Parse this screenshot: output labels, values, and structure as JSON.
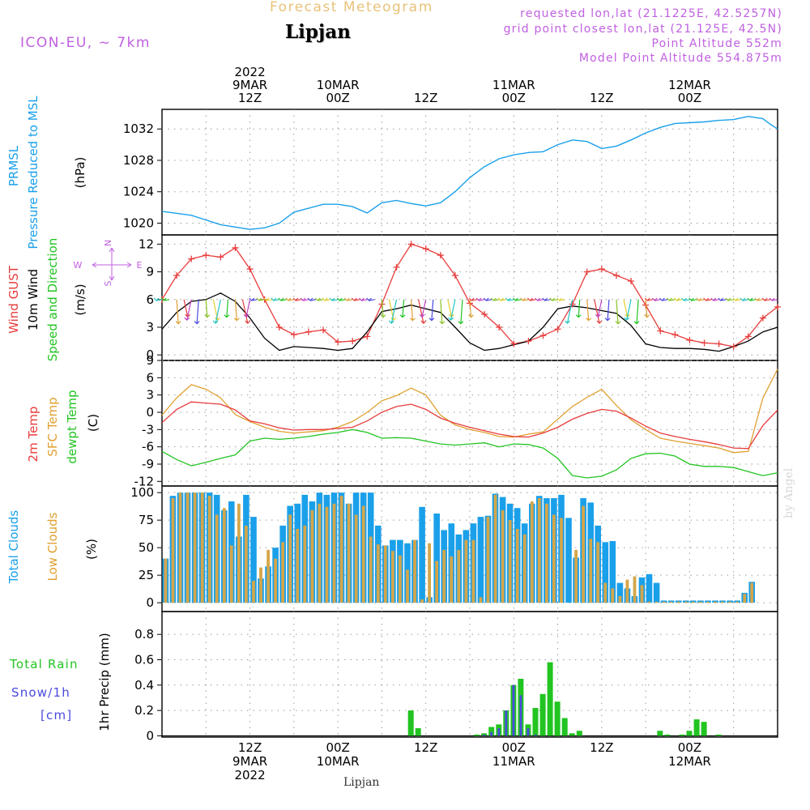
{
  "header": {
    "title": "Forecast Meteogram",
    "location": "Lipjan",
    "model": "ICON-EU, ~ 7km",
    "requested": "requested lon,lat (21.1225E, 42.5257N)",
    "grid_point": "grid point closest lon,lat (21.125E, 42.5N)",
    "point_altitude": "Point Altitude 552m",
    "model_altitude": "Model Point Altitude 554.875m"
  },
  "footer": {
    "location": "Lipjan",
    "watermark": "by Angel"
  },
  "time_axis": {
    "top_labels": [
      {
        "hour": 12,
        "lines": [
          "2022",
          "9MAR",
          "12Z"
        ]
      },
      {
        "hour": 24,
        "lines": [
          "10MAR",
          "00Z"
        ]
      },
      {
        "hour": 36,
        "lines": [
          "12Z"
        ]
      },
      {
        "hour": 48,
        "lines": [
          "11MAR",
          "00Z"
        ]
      },
      {
        "hour": 60,
        "lines": [
          "12Z"
        ]
      },
      {
        "hour": 72,
        "lines": [
          "12MAR",
          "00Z"
        ]
      }
    ],
    "bottom_labels": [
      {
        "hour": 12,
        "lines": [
          "12Z",
          "9MAR",
          "2022"
        ]
      },
      {
        "hour": 24,
        "lines": [
          "00Z",
          "10MAR"
        ]
      },
      {
        "hour": 36,
        "lines": [
          "12Z"
        ]
      },
      {
        "hour": 48,
        "lines": [
          "00Z",
          "11MAR"
        ]
      },
      {
        "hour": 60,
        "lines": [
          "12Z"
        ]
      },
      {
        "hour": 72,
        "lines": [
          "00Z",
          "12MAR"
        ]
      }
    ]
  },
  "panel_labels": {
    "pressure": {
      "lines": [
        {
          "text": "PRMSL",
          "color": "#1aa0ea"
        },
        {
          "text": "Pressure Reduced to MSL",
          "color": "#1aa0ea"
        },
        {
          "text": "(hPa)",
          "color": "#000000"
        }
      ]
    },
    "wind": {
      "lines": [
        {
          "text": "Wind GUST",
          "color": "#e83c3c"
        },
        {
          "text": "10m Wind",
          "color": "#000000"
        },
        {
          "text": "Speed and Direction",
          "color": "#22c422"
        },
        {
          "text": "(m/s)",
          "color": "#000000"
        }
      ]
    },
    "temp": {
      "lines": [
        {
          "text": "2m Temp",
          "color": "#e83c3c"
        },
        {
          "text": "SFC Temp",
          "color": "#e0a030"
        },
        {
          "text": "dewpt Temp",
          "color": "#22c422"
        },
        {
          "text": "(C)",
          "color": "#000000"
        }
      ]
    },
    "clouds": {
      "lines": [
        {
          "text": "Total Clouds",
          "color": "#1aa0ea"
        },
        {
          "text": "Low Clouds",
          "color": "#e0a030"
        },
        {
          "text": "(%)",
          "color": "#000000"
        }
      ]
    },
    "precip": {
      "axis_label": "1hr Precip (mm)",
      "legend": [
        {
          "text": "Total  Rain",
          "color": "#22c422"
        },
        {
          "text": "Snow/1h",
          "color": "#4a4ae0"
        },
        {
          "text": "[cm]",
          "color": "#4a4ae0"
        }
      ]
    },
    "compass": {
      "n": "N",
      "s": "S",
      "w": "W",
      "e": "E"
    }
  },
  "colors": {
    "pressure": "#1aa0ea",
    "gust": "#e83c3c",
    "wind": "#000000",
    "temp2m": "#e83c3c",
    "sfc": "#e0a030",
    "dewpt": "#22c422",
    "total_clouds": "#1aa0ea",
    "low_clouds": "#d4a64a",
    "rain": "#22c422",
    "snow": "#4a4ae0"
  },
  "chart_data": [
    {
      "type": "line",
      "name": "pressure",
      "ylim": [
        1018.5,
        1034.5
      ],
      "yticks": [
        1020,
        1024,
        1028,
        1032
      ],
      "x": [
        0,
        4,
        8,
        12,
        14,
        16,
        18,
        20,
        22,
        24,
        26,
        28,
        30,
        32,
        34,
        36,
        38,
        40,
        42,
        44,
        46,
        48,
        50,
        52,
        54,
        56,
        58,
        60,
        62,
        64,
        66,
        68,
        70,
        72,
        74,
        76,
        78,
        80,
        82,
        83,
        84
      ],
      "values": [
        1021.5,
        1021,
        1019.8,
        1019.2,
        1019.4,
        1020,
        1021.4,
        1021.9,
        1022.4,
        1022.4,
        1022.1,
        1021.3,
        1022.6,
        1022.9,
        1022.5,
        1022.2,
        1022.6,
        1024,
        1025.8,
        1027.2,
        1028.2,
        1028.7,
        1029,
        1029.1,
        1030,
        1030.6,
        1030.4,
        1029.5,
        1029.8,
        1030.6,
        1031.5,
        1032.2,
        1032.7,
        1032.8,
        1032.9,
        1033.1,
        1033.2,
        1033.6,
        1033.3,
        1032.6,
        1032
      ]
    },
    {
      "type": "line",
      "name": "wind",
      "ylim": [
        -0.6,
        13.0
      ],
      "yticks": [
        0,
        3,
        6,
        9,
        12
      ],
      "x": [
        0,
        2,
        4,
        6,
        8,
        10,
        12,
        14,
        16,
        18,
        20,
        22,
        24,
        26,
        28,
        30,
        32,
        34,
        36,
        38,
        40,
        42,
        44,
        46,
        48,
        50,
        52,
        54,
        56,
        58,
        60,
        62,
        64,
        66,
        68,
        70,
        72,
        74,
        76,
        78,
        80,
        82,
        84
      ],
      "gust": [
        6,
        8.6,
        10.4,
        10.8,
        10.6,
        11.6,
        9.3,
        6,
        3,
        2.2,
        2.5,
        2.7,
        1.4,
        1.5,
        2,
        5.5,
        9.5,
        12,
        11.5,
        10.8,
        8.6,
        5.6,
        4.4,
        3,
        1.2,
        1.5,
        2.1,
        2.8,
        5.5,
        9,
        9.3,
        8.6,
        8,
        5.4,
        2.6,
        2.2,
        1.6,
        1.3,
        1.2,
        0.9,
        2,
        4,
        5.2
      ],
      "speed": [
        2.8,
        4.6,
        5.8,
        6,
        6.7,
        5.8,
        4,
        1.8,
        0.5,
        0.9,
        0.8,
        0.7,
        0.5,
        0.7,
        2.5,
        4.7,
        5,
        5.4,
        5,
        4.6,
        3,
        1.3,
        0.5,
        0.7,
        1.1,
        1.5,
        3,
        5,
        5.3,
        5.1,
        4.8,
        4.5,
        3.2,
        1.2,
        0.8,
        0.7,
        0.7,
        0.6,
        0.4,
        0.9,
        1.5,
        2.5,
        3
      ]
    },
    {
      "type": "line",
      "name": "temperature",
      "ylim": [
        -12.8,
        9.0
      ],
      "yticks": [
        -12,
        -9,
        -6,
        -3,
        0,
        3,
        6,
        9
      ],
      "x": [
        0,
        2,
        4,
        6,
        8,
        10,
        12,
        14,
        16,
        18,
        20,
        22,
        24,
        26,
        28,
        30,
        32,
        34,
        36,
        38,
        40,
        42,
        44,
        46,
        48,
        50,
        52,
        54,
        56,
        58,
        60,
        62,
        64,
        66,
        68,
        70,
        72,
        74,
        76,
        78,
        80,
        82,
        84
      ],
      "temp2m": [
        -1.8,
        0.5,
        1.8,
        1.6,
        1.4,
        0.4,
        -1.5,
        -2,
        -2.7,
        -3.1,
        -3,
        -3,
        -2.8,
        -2.6,
        -1.5,
        0,
        1,
        1.4,
        0.5,
        -1,
        -1.9,
        -2.6,
        -3.2,
        -3.8,
        -4.2,
        -4.3,
        -3.6,
        -2.6,
        -1.2,
        -0.2,
        0.5,
        0.2,
        -1,
        -2.4,
        -3.6,
        -4.2,
        -4.7,
        -5.1,
        -5.6,
        -6.2,
        -6.3,
        -2.3,
        0.4
      ],
      "sfc": [
        -0.5,
        2.5,
        4.8,
        4,
        2.5,
        -0.4,
        -1.6,
        -2.6,
        -3.3,
        -3.6,
        -3.4,
        -3.2,
        -2.6,
        -1.6,
        0,
        2,
        2.9,
        4.2,
        3,
        -0.5,
        -2.2,
        -3,
        -3.5,
        -4.2,
        -4.3,
        -3.8,
        -3.4,
        -1.2,
        1,
        2.6,
        4,
        1.2,
        -1.3,
        -3,
        -4.5,
        -5,
        -5.4,
        -5.8,
        -6.2,
        -7,
        -6.8,
        2.5,
        7.5
      ],
      "dewpt": [
        -6.8,
        -8.2,
        -9.3,
        -8.7,
        -8,
        -7.4,
        -5,
        -4.5,
        -4.7,
        -4.5,
        -4.2,
        -3.8,
        -3.5,
        -3,
        -3.5,
        -4.5,
        -4.4,
        -4.5,
        -5,
        -5.5,
        -5.7,
        -5.5,
        -5.3,
        -6,
        -5.5,
        -5.6,
        -6.2,
        -8,
        -11,
        -11.4,
        -11.1,
        -10,
        -8,
        -7.2,
        -7.1,
        -7.6,
        -9,
        -9.4,
        -9.4,
        -9.6,
        -10.3,
        -11,
        -10.5
      ]
    },
    {
      "type": "bar",
      "name": "clouds",
      "ylim": [
        -8,
        106
      ],
      "yticks": [
        0,
        25,
        50,
        75,
        100
      ],
      "start_hour": 0,
      "step_hours": 1,
      "total": [
        40,
        97,
        100,
        100,
        100,
        100,
        100,
        98,
        84,
        92,
        60,
        98,
        78,
        22,
        33,
        50,
        70,
        88,
        90,
        98,
        92,
        100,
        98,
        100,
        100,
        90,
        100,
        100,
        100,
        70,
        52,
        57,
        57,
        54,
        57,
        87,
        5,
        81,
        66,
        72,
        62,
        66,
        72,
        78,
        79,
        99,
        96,
        90,
        86,
        72,
        90,
        97,
        95,
        95,
        98,
        77,
        41,
        95,
        91,
        70,
        55,
        56,
        18,
        13,
        6,
        23,
        26,
        18,
        2,
        2,
        2,
        2,
        2,
        2,
        2,
        2,
        2,
        2,
        2,
        9,
        19
      ],
      "low": [
        40,
        95,
        100,
        100,
        100,
        100,
        97,
        80,
        86,
        52,
        90,
        70,
        20,
        32,
        48,
        40,
        55,
        80,
        67,
        70,
        84,
        90,
        87,
        90,
        97,
        90,
        80,
        88,
        60,
        53,
        52,
        47,
        43,
        30,
        57,
        3,
        54,
        38,
        48,
        42,
        48,
        57,
        57,
        5,
        78,
        98,
        84,
        75,
        67,
        62,
        92,
        95,
        90,
        80,
        77,
        0,
        48,
        88,
        58,
        55,
        18,
        13,
        6,
        21,
        24,
        16,
        1,
        1,
        1,
        1,
        1,
        1,
        1,
        1,
        1,
        1,
        1,
        1,
        1,
        8,
        18
      ]
    },
    {
      "type": "bar",
      "name": "precipitation",
      "ylim": [
        -0.01,
        0.98
      ],
      "yticks": [
        0,
        0.2,
        0.4,
        0.6,
        0.8
      ],
      "rain": [
        {
          "h": 34,
          "v": 0.2
        },
        {
          "h": 35,
          "v": 0.06
        },
        {
          "h": 43,
          "v": 0.01
        },
        {
          "h": 44,
          "v": 0.02
        },
        {
          "h": 45,
          "v": 0.07
        },
        {
          "h": 46,
          "v": 0.09
        },
        {
          "h": 47,
          "v": 0.2
        },
        {
          "h": 48,
          "v": 0.4
        },
        {
          "h": 49,
          "v": 0.45
        },
        {
          "h": 50,
          "v": 0.09
        },
        {
          "h": 51,
          "v": 0.22
        },
        {
          "h": 52,
          "v": 0.33
        },
        {
          "h": 53,
          "v": 0.58
        },
        {
          "h": 54,
          "v": 0.27
        },
        {
          "h": 55,
          "v": 0.14
        },
        {
          "h": 56,
          "v": 0.02
        },
        {
          "h": 57,
          "v": 0.04
        },
        {
          "h": 68,
          "v": 0.04
        },
        {
          "h": 69,
          "v": 0.01
        },
        {
          "h": 71,
          "v": 0.01
        },
        {
          "h": 72,
          "v": 0.04
        },
        {
          "h": 73,
          "v": 0.13
        },
        {
          "h": 74,
          "v": 0.11
        },
        {
          "h": 76,
          "v": 0.01
        }
      ],
      "snow": [
        {
          "h": 44,
          "v": 0.01
        },
        {
          "h": 45,
          "v": 0.03
        },
        {
          "h": 46,
          "v": 0.06
        },
        {
          "h": 47,
          "v": 0.2
        },
        {
          "h": 48,
          "v": 0.4
        },
        {
          "h": 49,
          "v": 0.32
        },
        {
          "h": 50,
          "v": 0.06
        },
        {
          "h": 51,
          "v": 0.01
        }
      ]
    }
  ]
}
